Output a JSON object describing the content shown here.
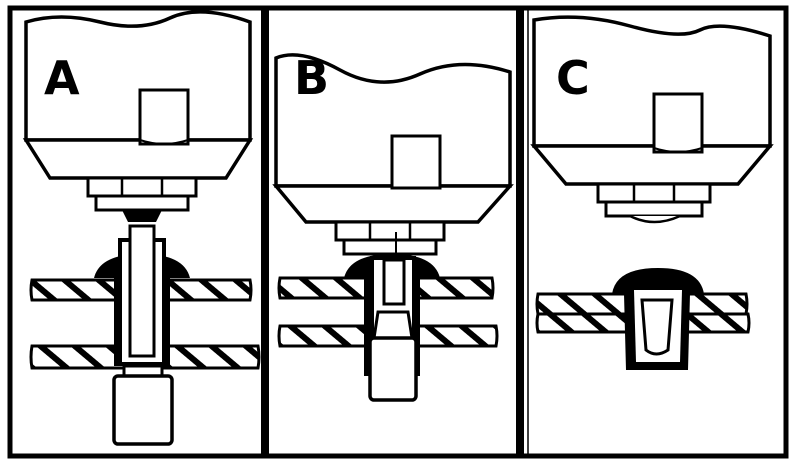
{
  "panels": [
    {
      "label": "A"
    },
    {
      "label": "B"
    },
    {
      "label": "C"
    }
  ],
  "colors": {
    "ink": "#000000",
    "paper": "#ffffff"
  }
}
